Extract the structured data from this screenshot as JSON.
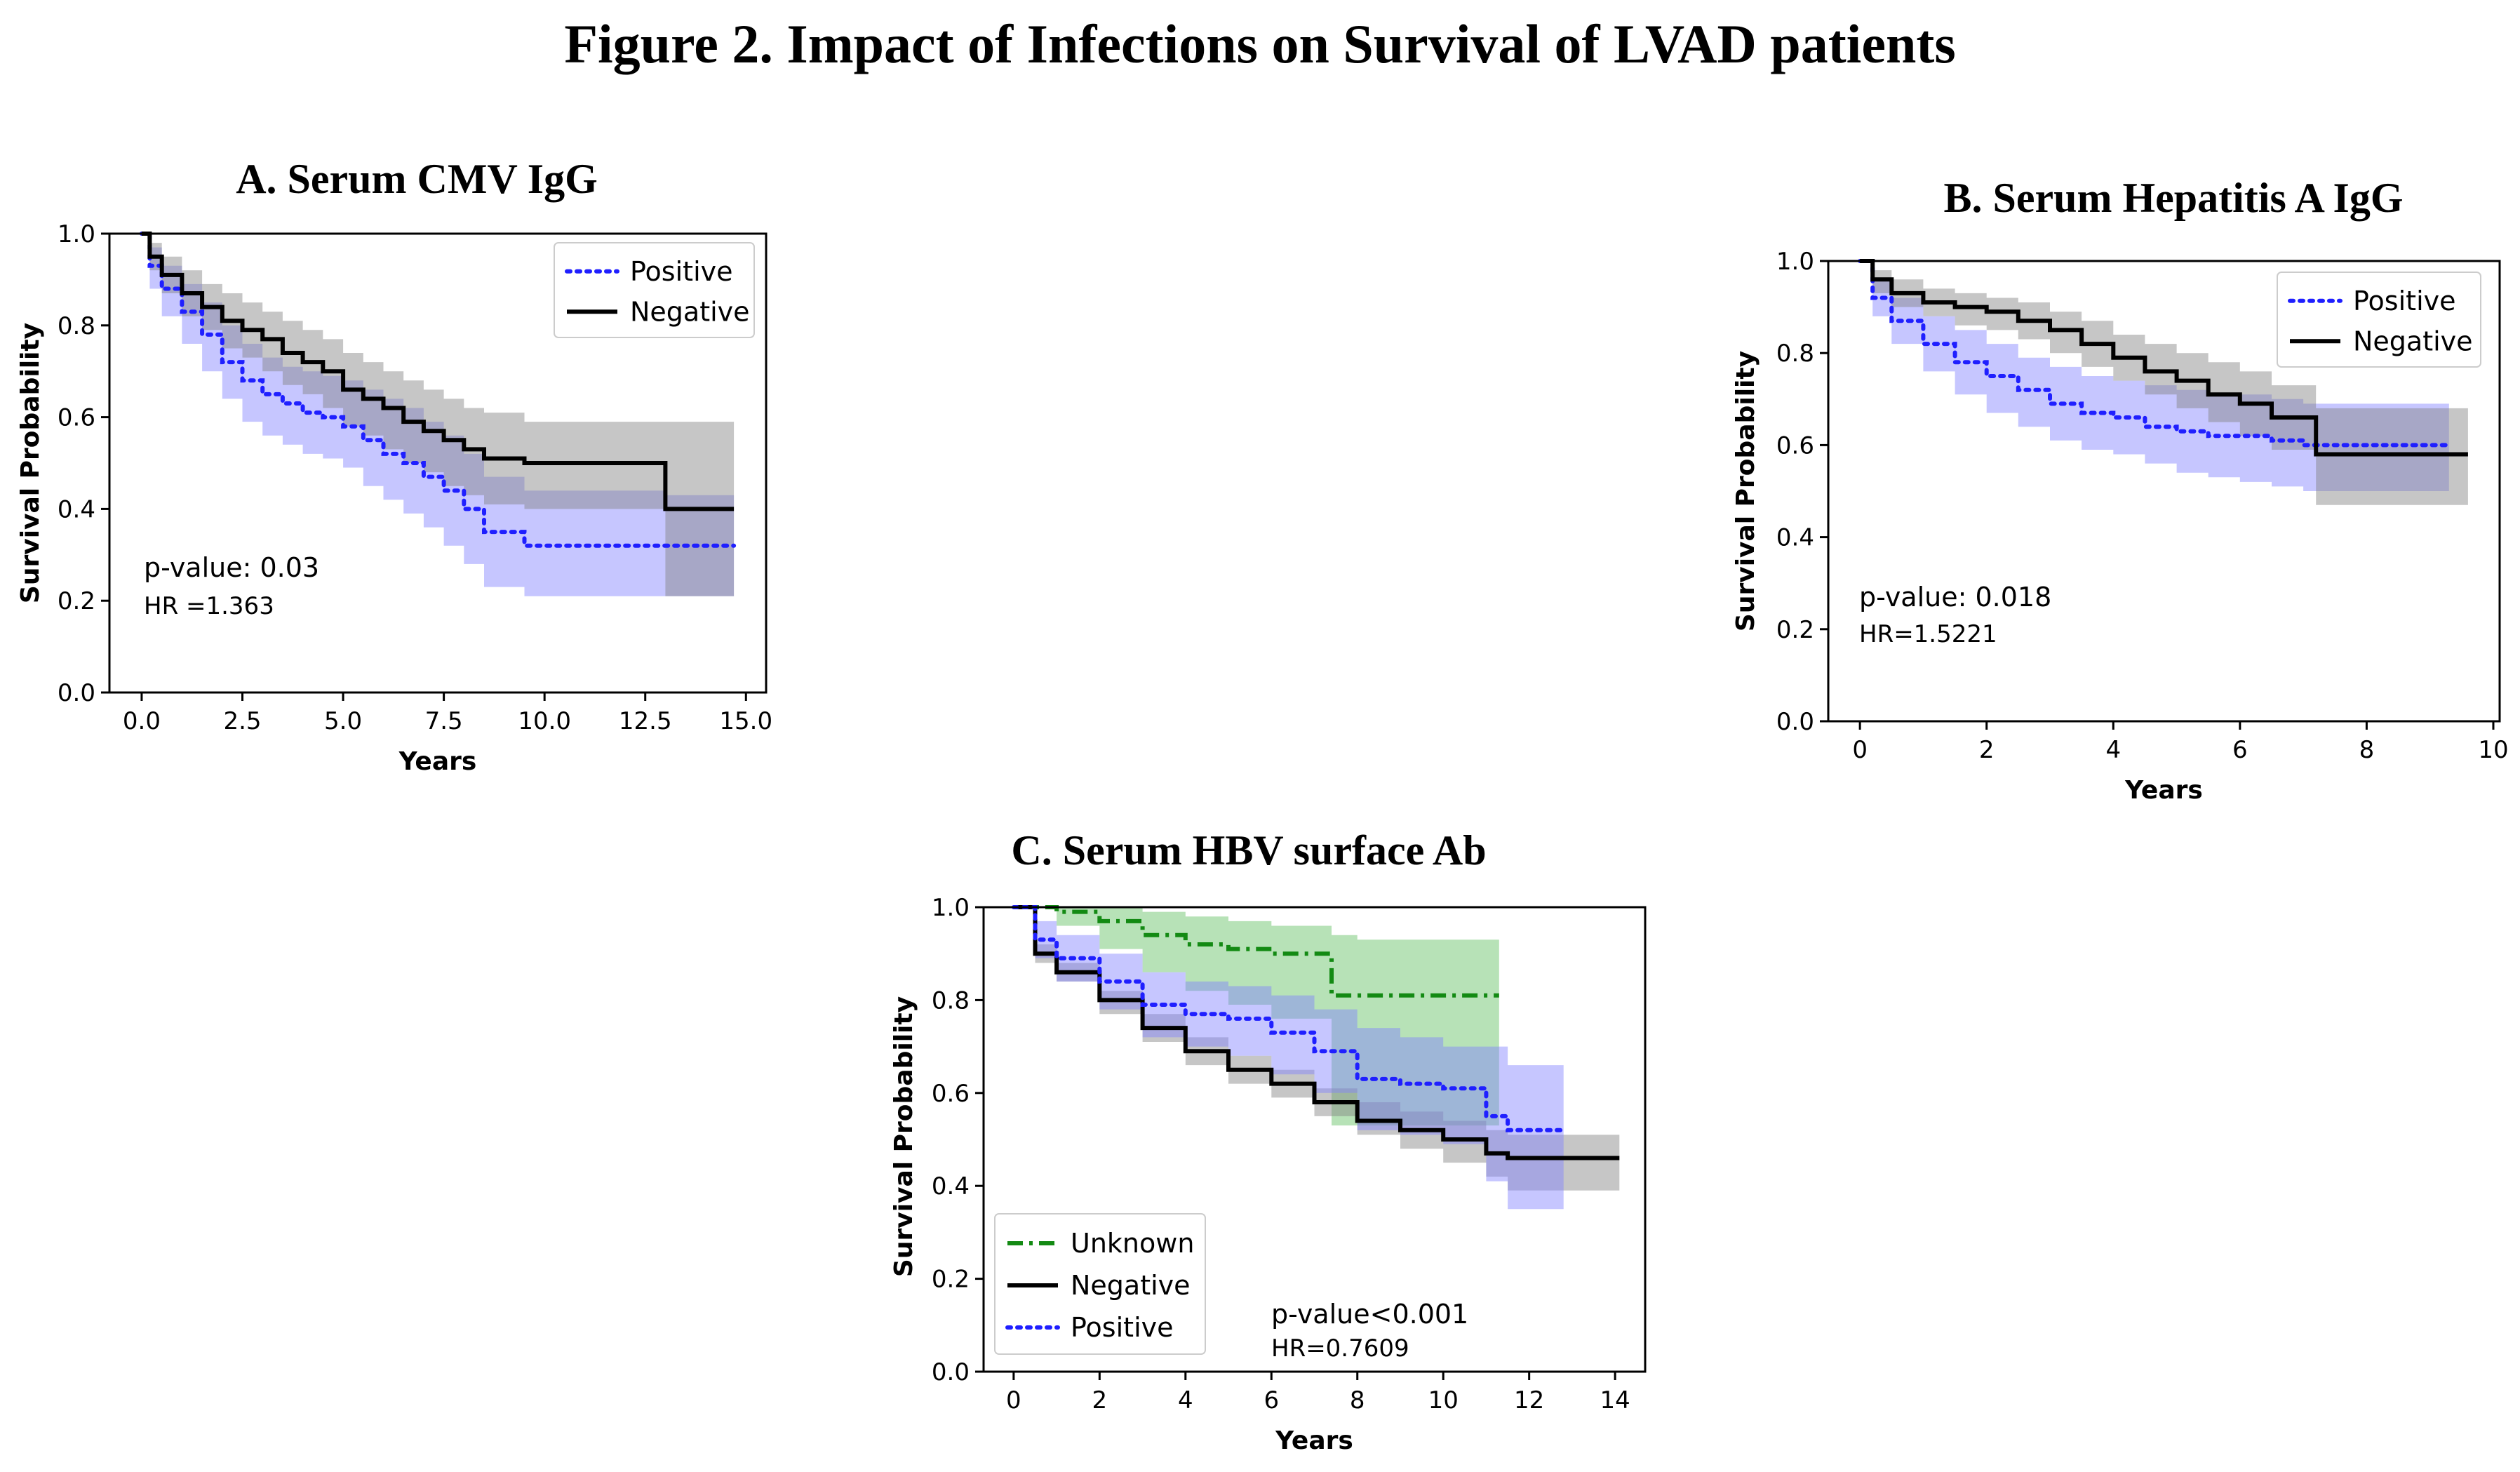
{
  "title": "Figure 2. Impact of Infections on Survival of LVAD patients",
  "colors": {
    "positive": "#1f1fff",
    "positive_band": "#8080ff",
    "negative": "#000000",
    "negative_band": "#808080",
    "unknown": "#138a13",
    "unknown_band": "#5fbf5f"
  },
  "chart_data": [
    {
      "id": "A",
      "type": "line",
      "title": "A. Serum CMV IgG",
      "xlabel": "Years",
      "ylabel": "Survival Probability",
      "xlim": [
        -0.8,
        15.5
      ],
      "ylim": [
        0,
        1.0
      ],
      "xticks": [
        0,
        2.5,
        5,
        7.5,
        10,
        12.5,
        15
      ],
      "xtick_labels": [
        "0.0",
        "2.5",
        "5.0",
        "7.5",
        "10.0",
        "12.5",
        "15.0"
      ],
      "yticks": [
        0,
        0.2,
        0.4,
        0.6,
        0.8,
        1.0
      ],
      "ytick_labels": [
        "0.0",
        "0.2",
        "0.4",
        "0.6",
        "0.8",
        "1.0"
      ],
      "legend_position": "top-right",
      "annotations": [
        "p-value:  0.03",
        "HR =1.363"
      ],
      "series": [
        {
          "name": "Positive",
          "style": "dotted",
          "color_key": "positive",
          "x": [
            0,
            0.2,
            0.5,
            1.0,
            1.5,
            2.0,
            2.5,
            3.0,
            3.5,
            4.0,
            4.5,
            5.0,
            5.5,
            6.0,
            6.5,
            7.0,
            7.5,
            8.0,
            8.5,
            9.5,
            13.0,
            14.7
          ],
          "y": [
            1.0,
            0.93,
            0.88,
            0.83,
            0.78,
            0.72,
            0.68,
            0.65,
            0.63,
            0.61,
            0.6,
            0.58,
            0.55,
            0.52,
            0.5,
            0.47,
            0.44,
            0.4,
            0.35,
            0.32,
            0.32,
            0.32
          ],
          "upper": [
            1.0,
            0.97,
            0.93,
            0.89,
            0.85,
            0.8,
            0.76,
            0.73,
            0.71,
            0.7,
            0.69,
            0.68,
            0.66,
            0.64,
            0.62,
            0.59,
            0.56,
            0.52,
            0.47,
            0.44,
            0.43,
            0.43
          ],
          "lower": [
            1.0,
            0.88,
            0.82,
            0.76,
            0.7,
            0.64,
            0.59,
            0.56,
            0.54,
            0.52,
            0.51,
            0.49,
            0.45,
            0.42,
            0.39,
            0.36,
            0.32,
            0.28,
            0.23,
            0.21,
            0.21,
            0.21
          ]
        },
        {
          "name": "Negative",
          "style": "solid",
          "color_key": "negative",
          "x": [
            0,
            0.2,
            0.5,
            1.0,
            1.5,
            2.0,
            2.5,
            3.0,
            3.5,
            4.0,
            4.5,
            5.0,
            5.5,
            6.0,
            6.5,
            7.0,
            7.5,
            8.0,
            8.5,
            9.5,
            13.0,
            14.7
          ],
          "y": [
            1.0,
            0.95,
            0.91,
            0.87,
            0.84,
            0.81,
            0.79,
            0.77,
            0.74,
            0.72,
            0.7,
            0.66,
            0.64,
            0.62,
            0.59,
            0.57,
            0.55,
            0.53,
            0.51,
            0.5,
            0.4,
            0.4
          ],
          "upper": [
            1.0,
            0.98,
            0.95,
            0.92,
            0.89,
            0.87,
            0.85,
            0.83,
            0.81,
            0.79,
            0.77,
            0.74,
            0.72,
            0.7,
            0.68,
            0.66,
            0.64,
            0.62,
            0.61,
            0.59,
            0.59,
            0.59
          ],
          "lower": [
            1.0,
            0.92,
            0.87,
            0.82,
            0.79,
            0.75,
            0.73,
            0.7,
            0.67,
            0.65,
            0.62,
            0.58,
            0.56,
            0.53,
            0.5,
            0.48,
            0.45,
            0.43,
            0.41,
            0.4,
            0.21,
            0.21
          ]
        }
      ]
    },
    {
      "id": "B",
      "type": "line",
      "title": "B. Serum Hepatitis A IgG",
      "xlabel": "Years",
      "ylabel": "Survival Probability",
      "xlim": [
        -0.5,
        10.1
      ],
      "ylim": [
        0,
        1.0
      ],
      "xticks": [
        0,
        2,
        4,
        6,
        8,
        10
      ],
      "xtick_labels": [
        "0",
        "2",
        "4",
        "6",
        "8",
        "10"
      ],
      "yticks": [
        0,
        0.2,
        0.4,
        0.6,
        0.8,
        1.0
      ],
      "ytick_labels": [
        "0.0",
        "0.2",
        "0.4",
        "0.6",
        "0.8",
        "1.0"
      ],
      "legend_position": "top-right",
      "annotations": [
        "p-value:  0.018",
        "HR=1.5221"
      ],
      "series": [
        {
          "name": "Positive",
          "style": "dotted",
          "color_key": "positive",
          "x": [
            0,
            0.2,
            0.5,
            1.0,
            1.5,
            2.0,
            2.5,
            3.0,
            3.5,
            4.0,
            4.5,
            5.0,
            5.5,
            6.0,
            6.5,
            7.0,
            7.5,
            8.0,
            9.3
          ],
          "y": [
            1.0,
            0.92,
            0.87,
            0.82,
            0.78,
            0.75,
            0.72,
            0.69,
            0.67,
            0.66,
            0.64,
            0.63,
            0.62,
            0.62,
            0.61,
            0.6,
            0.6,
            0.6,
            0.6
          ],
          "upper": [
            1.0,
            0.96,
            0.92,
            0.88,
            0.85,
            0.82,
            0.79,
            0.77,
            0.75,
            0.74,
            0.73,
            0.72,
            0.71,
            0.71,
            0.7,
            0.69,
            0.69,
            0.69,
            0.69
          ],
          "lower": [
            1.0,
            0.88,
            0.82,
            0.76,
            0.71,
            0.67,
            0.64,
            0.61,
            0.59,
            0.58,
            0.56,
            0.54,
            0.53,
            0.52,
            0.51,
            0.5,
            0.5,
            0.5,
            0.5
          ]
        },
        {
          "name": "Negative",
          "style": "solid",
          "color_key": "negative",
          "x": [
            0,
            0.2,
            0.5,
            1.0,
            1.5,
            2.0,
            2.5,
            3.0,
            3.5,
            4.0,
            4.5,
            5.0,
            5.5,
            6.0,
            6.5,
            7.2,
            8.0,
            9.6
          ],
          "y": [
            1.0,
            0.96,
            0.93,
            0.91,
            0.9,
            0.89,
            0.87,
            0.85,
            0.82,
            0.79,
            0.76,
            0.74,
            0.71,
            0.69,
            0.66,
            0.58,
            0.58,
            0.58
          ],
          "upper": [
            1.0,
            0.98,
            0.96,
            0.94,
            0.93,
            0.92,
            0.91,
            0.89,
            0.87,
            0.84,
            0.82,
            0.8,
            0.78,
            0.76,
            0.73,
            0.68,
            0.68,
            0.68
          ],
          "lower": [
            1.0,
            0.93,
            0.9,
            0.88,
            0.86,
            0.85,
            0.83,
            0.8,
            0.77,
            0.74,
            0.71,
            0.68,
            0.65,
            0.62,
            0.59,
            0.47,
            0.47,
            0.47
          ]
        }
      ]
    },
    {
      "id": "C",
      "type": "line",
      "title": "C. Serum HBV surface Ab",
      "xlabel": "Years",
      "ylabel": "Survival Probability",
      "xlim": [
        -0.7,
        14.7
      ],
      "ylim": [
        0,
        1.0
      ],
      "xticks": [
        0,
        2,
        4,
        6,
        8,
        10,
        12,
        14
      ],
      "xtick_labels": [
        "0",
        "2",
        "4",
        "6",
        "8",
        "10",
        "12",
        "14"
      ],
      "yticks": [
        0,
        0.2,
        0.4,
        0.6,
        0.8,
        1.0
      ],
      "ytick_labels": [
        "0.0",
        "0.2",
        "0.4",
        "0.6",
        "0.8",
        "1.0"
      ],
      "legend_position": "bottom-left",
      "annotations": [
        "p-value<0.001",
        "HR=0.7609"
      ],
      "series": [
        {
          "name": "Unknown",
          "style": "dashdot",
          "color_key": "unknown",
          "x": [
            0,
            1.0,
            2.0,
            3.0,
            4.0,
            5.0,
            6.0,
            7.4,
            8.0,
            11.3
          ],
          "y": [
            1.0,
            0.99,
            0.97,
            0.94,
            0.92,
            0.91,
            0.9,
            0.81,
            0.81,
            0.81
          ],
          "upper": [
            1.0,
            1.0,
            1.0,
            0.99,
            0.98,
            0.97,
            0.96,
            0.94,
            0.93,
            0.93
          ],
          "lower": [
            1.0,
            0.96,
            0.91,
            0.86,
            0.82,
            0.79,
            0.76,
            0.53,
            0.53,
            0.53
          ]
        },
        {
          "name": "Negative",
          "style": "solid",
          "color_key": "negative",
          "x": [
            0,
            0.5,
            1.0,
            2.0,
            3.0,
            4.0,
            5.0,
            6.0,
            7.0,
            8.0,
            9.0,
            10.0,
            11.0,
            11.5,
            14.1
          ],
          "y": [
            1.0,
            0.9,
            0.86,
            0.8,
            0.74,
            0.69,
            0.65,
            0.62,
            0.58,
            0.54,
            0.52,
            0.5,
            0.47,
            0.46,
            0.46
          ],
          "upper": [
            1.0,
            0.92,
            0.88,
            0.82,
            0.77,
            0.72,
            0.68,
            0.65,
            0.61,
            0.58,
            0.56,
            0.54,
            0.52,
            0.51,
            0.51
          ],
          "lower": [
            1.0,
            0.88,
            0.84,
            0.77,
            0.71,
            0.66,
            0.62,
            0.59,
            0.55,
            0.51,
            0.48,
            0.45,
            0.42,
            0.39,
            0.39
          ]
        },
        {
          "name": "Positive",
          "style": "dotted",
          "color_key": "positive",
          "x": [
            0,
            0.5,
            1.0,
            2.0,
            3.0,
            4.0,
            5.0,
            6.0,
            7.0,
            8.0,
            9.0,
            10.0,
            11.0,
            11.5,
            12.8
          ],
          "y": [
            1.0,
            0.93,
            0.89,
            0.84,
            0.79,
            0.77,
            0.76,
            0.73,
            0.69,
            0.63,
            0.62,
            0.61,
            0.55,
            0.52,
            0.52
          ],
          "upper": [
            1.0,
            0.97,
            0.94,
            0.9,
            0.86,
            0.84,
            0.83,
            0.81,
            0.78,
            0.74,
            0.72,
            0.7,
            0.7,
            0.66,
            0.66
          ],
          "lower": [
            1.0,
            0.89,
            0.84,
            0.78,
            0.72,
            0.7,
            0.68,
            0.64,
            0.6,
            0.52,
            0.51,
            0.49,
            0.41,
            0.35,
            0.35
          ]
        }
      ]
    }
  ]
}
